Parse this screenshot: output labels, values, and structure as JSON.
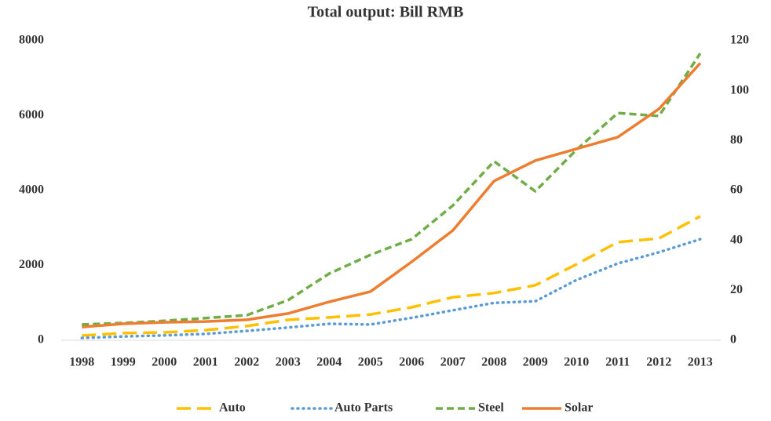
{
  "chart_data": {
    "type": "line",
    "title": "Total output: Bill RMB",
    "categories": [
      "1998",
      "1999",
      "2000",
      "2001",
      "2002",
      "2003",
      "2004",
      "2005",
      "2006",
      "2007",
      "2008",
      "2009",
      "2010",
      "2011",
      "2012",
      "2013"
    ],
    "ylim": [
      0,
      8000
    ],
    "yticks": [
      0,
      2000,
      4000,
      6000,
      8000
    ],
    "y2lim": [
      0,
      120
    ],
    "y2ticks": [
      0,
      20,
      40,
      60,
      80,
      100,
      120
    ],
    "legend": "bottom",
    "grid": false,
    "series": [
      {
        "name": "Auto",
        "color": "#FFC000",
        "dash": "18,8",
        "values": [
          125,
          190,
          210,
          270,
          380,
          545,
          610,
          690,
          880,
          1150,
          1260,
          1470,
          2030,
          2620,
          2720,
          3310
        ]
      },
      {
        "name": "Auto Parts",
        "color": "#5B9BD5",
        "dash": "1,6",
        "values": [
          60,
          100,
          130,
          170,
          250,
          340,
          440,
          420,
          600,
          800,
          1000,
          1040,
          1610,
          2050,
          2350,
          2700
        ]
      },
      {
        "name": "Steel",
        "color": "#70AD47",
        "dash": "9,5",
        "values": [
          420,
          460,
          520,
          590,
          670,
          1070,
          1780,
          2280,
          2700,
          3600,
          4780,
          3980,
          5090,
          6070,
          5990,
          7660
        ]
      },
      {
        "name": "Solar",
        "color": "#ED7D31",
        "axis": "y2",
        "values": [
          5.3,
          6.6,
          7.2,
          7.5,
          8.2,
          10.7,
          15.4,
          19.5,
          31.4,
          44,
          63.8,
          72,
          76.7,
          81.4,
          92.7,
          111
        ]
      }
    ]
  }
}
